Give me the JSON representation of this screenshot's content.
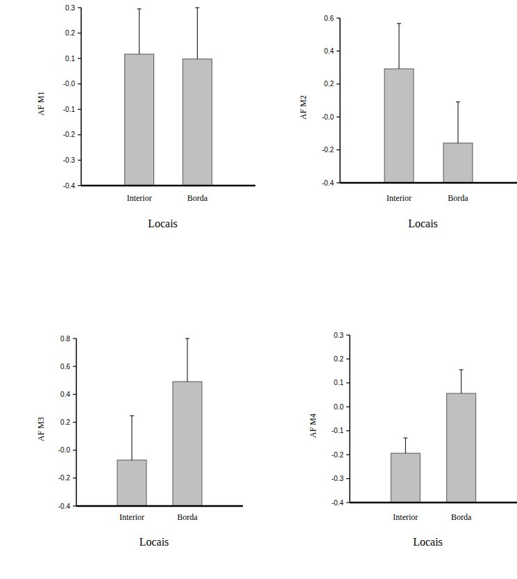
{
  "chart_data": [
    {
      "type": "bar",
      "y_label": "AF M1",
      "x_label": "Locais",
      "categories": [
        "Interior",
        "Borda"
      ],
      "values": [
        0.117,
        0.098
      ],
      "errors": [
        0.178,
        0.202
      ],
      "color": "#c0c0c0",
      "ylim": [
        -0.4,
        0.3
      ],
      "yticks": [
        0.3,
        0.2,
        0.1,
        {
          "value": 0,
          "label": "-0.0"
        },
        -0.1,
        -0.2,
        -0.3,
        -0.4
      ]
    },
    {
      "type": "bar",
      "y_label": "AF M2",
      "x_label": "Locais",
      "categories": [
        "Interior",
        "Borda"
      ],
      "values": [
        0.292,
        -0.159
      ],
      "errors": [
        0.275,
        0.25
      ],
      "color": "#c0c0c0",
      "ylim": [
        -0.4,
        0.6
      ],
      "yticks": [
        0.6,
        0.4,
        0.2,
        {
          "value": 0,
          "label": "-0.0"
        },
        -0.2,
        -0.4
      ]
    },
    {
      "type": "bar",
      "y_label": "AF M3",
      "x_label": "Locais",
      "categories": [
        "Interior",
        "Borda"
      ],
      "values": [
        -0.071,
        0.491
      ],
      "errors": [
        0.318,
        0.309
      ],
      "color": "#c0c0c0",
      "ylim": [
        -0.4,
        0.8
      ],
      "yticks": [
        0.8,
        0.6,
        0.4,
        0.2,
        {
          "value": 0,
          "label": "-0.0"
        },
        -0.2,
        -0.4
      ]
    },
    {
      "type": "bar",
      "y_label": "AF M4",
      "x_label": "Locais",
      "categories": [
        "Interior",
        "Borda"
      ],
      "values": [
        -0.194,
        0.056
      ],
      "errors": [
        0.064,
        0.099
      ],
      "color": "#c0c0c0",
      "ylim": [
        -0.4,
        0.3
      ],
      "yticks": [
        0.3,
        0.2,
        0.1,
        {
          "value": 0,
          "label": "0.0"
        },
        -0.1,
        -0.2,
        -0.3,
        -0.4
      ]
    }
  ]
}
